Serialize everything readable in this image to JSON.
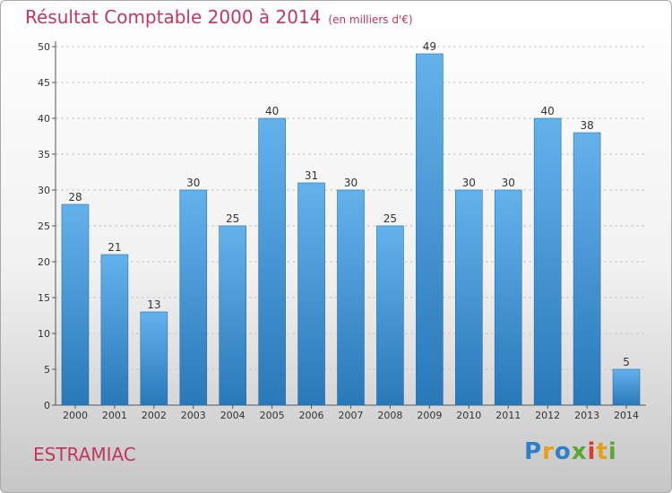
{
  "header": {
    "title": "Résultat Comptable 2000 à 2014",
    "subtitle": "(en milliers d'€)"
  },
  "footer": {
    "place_name": "ESTRAMIAC",
    "logo_text": "Proxiti"
  },
  "colors": {
    "bar_top": "#64b2ec",
    "bar_bottom": "#2978b8",
    "title": "#c2375e"
  },
  "chart_data": {
    "type": "bar",
    "title": "Résultat Comptable 2000 à 2014",
    "subtitle": "(en milliers d'€)",
    "xlabel": "",
    "ylabel": "",
    "categories": [
      "2000",
      "2001",
      "2002",
      "2003",
      "2004",
      "2005",
      "2006",
      "2007",
      "2008",
      "2009",
      "2010",
      "2011",
      "2012",
      "2013",
      "2014"
    ],
    "values": [
      28,
      21,
      13,
      30,
      25,
      40,
      31,
      30,
      25,
      49,
      30,
      30,
      40,
      38,
      5
    ],
    "ylim": [
      0,
      50
    ],
    "yticks": [
      0,
      5,
      10,
      15,
      20,
      25,
      30,
      35,
      40,
      45,
      50
    ],
    "grid": true,
    "legend": "none"
  }
}
